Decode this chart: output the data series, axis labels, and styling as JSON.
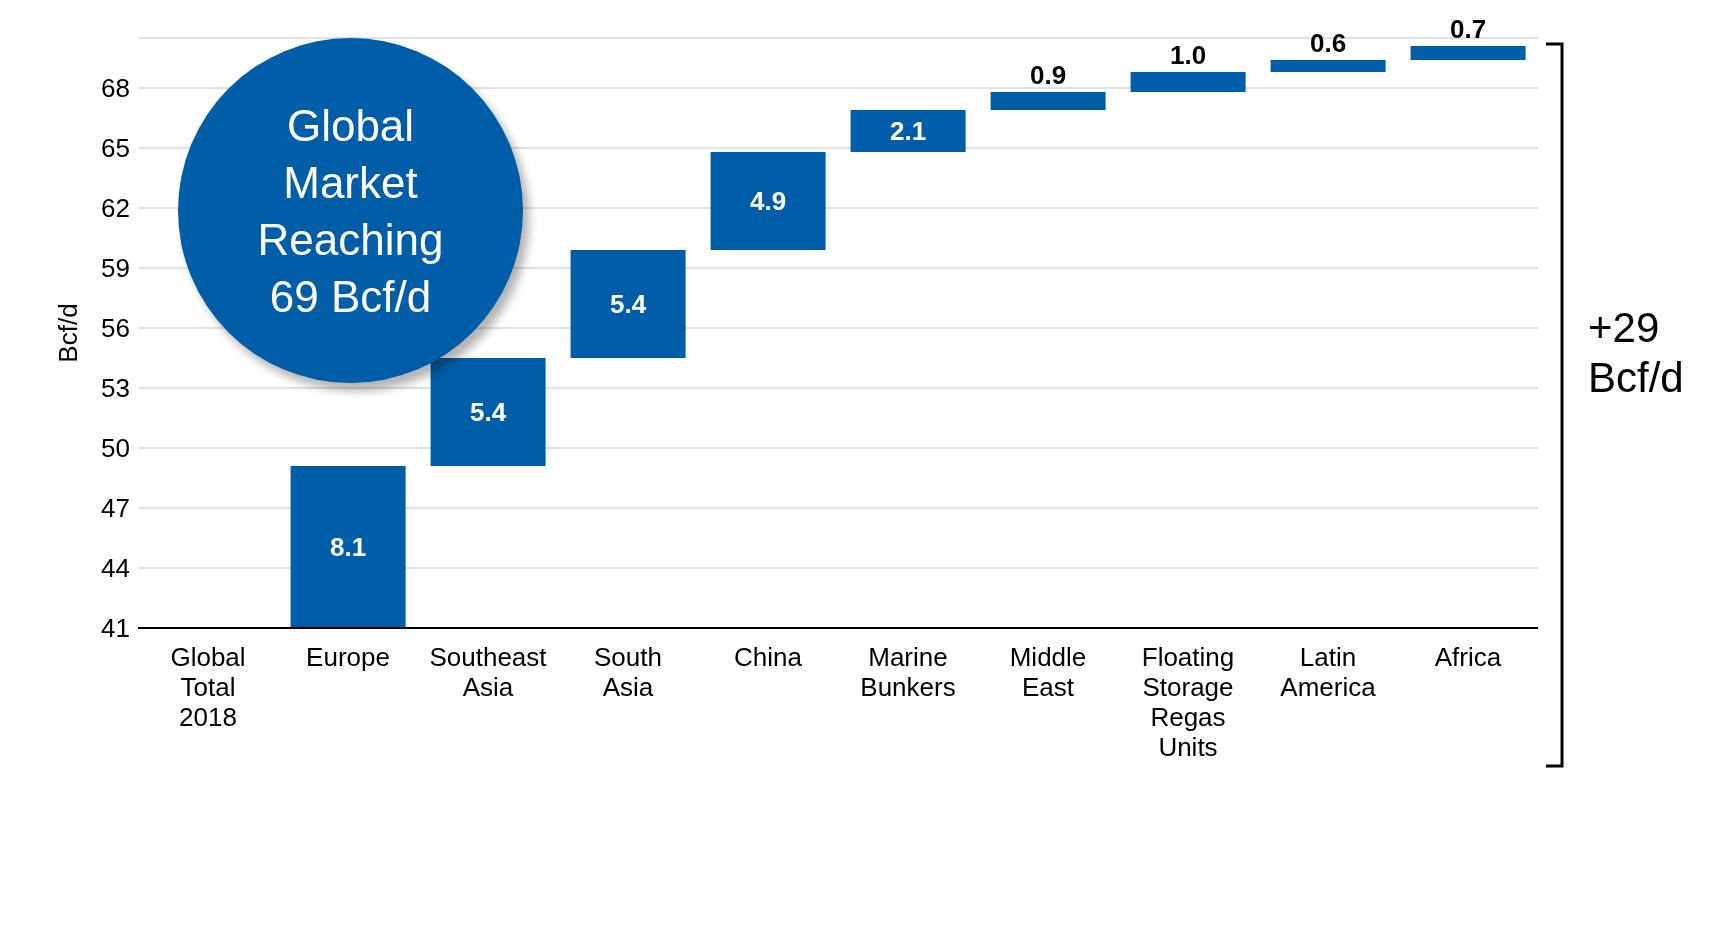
{
  "chart_data": {
    "type": "bar",
    "ylabel": "Bcf/d",
    "categories": [
      "Global Total 2018",
      "Europe",
      "Southeast Asia",
      "South Asia",
      "China",
      "Marine Bunkers",
      "Middle East",
      "Floating Storage Regas Units",
      "Latin America",
      "Africa"
    ],
    "values": [
      null,
      8.1,
      5.4,
      5.4,
      4.9,
      2.1,
      0.9,
      1.0,
      0.6,
      0.7
    ],
    "base": [
      null,
      41,
      49.1,
      54.5,
      59.9,
      64.8,
      66.9,
      67.8,
      68.8,
      69.4
    ],
    "color": "#005ea8",
    "value_labels": [
      null,
      "8.1",
      "5.4",
      "5.4",
      "4.9",
      "2.1",
      "0.9",
      "1.0",
      "0.6",
      "0.7"
    ],
    "ylim": [
      41,
      70.5
    ],
    "yticks": [
      41,
      44,
      47,
      50,
      53,
      56,
      59,
      62,
      65,
      68
    ],
    "grid": "y",
    "annotations": [
      "Global Market Reaching 69 Bcf/d",
      "+29 Bcf/d"
    ]
  }
}
